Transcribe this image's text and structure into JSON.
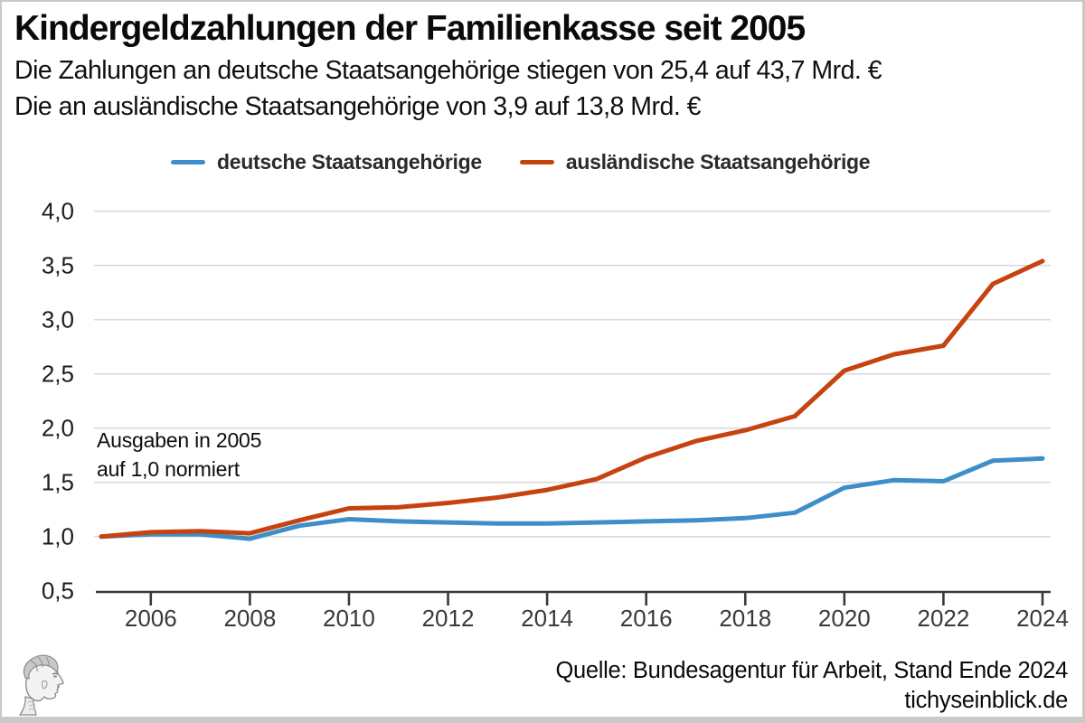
{
  "header": {
    "title": "Kindergeldzahlungen der Familienkasse seit 2005",
    "subtitle1": "Die Zahlungen an deutsche Staatsangehörige stiegen von 25,4 auf 43,7 Mrd. €",
    "subtitle2": "Die an ausländische Staatsangehörige von 3,9 auf 13,8 Mrd. €"
  },
  "legend": [
    {
      "label": "deutsche Staatsangehörige",
      "color": "#3e8ec9"
    },
    {
      "label": "ausländische Staatsangehörige",
      "color": "#c64310"
    }
  ],
  "annotation": {
    "line1": "Ausgaben in 2005",
    "line2": "auf 1,0 normiert"
  },
  "footer": {
    "source": "Quelle: Bundesagentur für Arbeit, Stand Ende 2024",
    "site": "tichyseinblick.de"
  },
  "logo": {
    "name": "tichys-einblick-head-logo"
  },
  "chart_data": {
    "type": "line",
    "title": "Kindergeldzahlungen der Familienkasse seit 2005",
    "annotation": "Ausgaben in 2005 auf 1,0 normiert",
    "x": [
      2005,
      2006,
      2007,
      2008,
      2009,
      2010,
      2011,
      2012,
      2013,
      2014,
      2015,
      2016,
      2017,
      2018,
      2019,
      2020,
      2021,
      2022,
      2023,
      2024
    ],
    "series": [
      {
        "name": "deutsche Staatsangehörige",
        "color": "#3e8ec9",
        "values": [
          1.0,
          1.02,
          1.02,
          0.98,
          1.1,
          1.16,
          1.14,
          1.13,
          1.12,
          1.12,
          1.13,
          1.14,
          1.15,
          1.17,
          1.22,
          1.45,
          1.52,
          1.51,
          1.7,
          1.72
        ]
      },
      {
        "name": "ausländische Staatsangehörige",
        "color": "#c64310",
        "values": [
          1.0,
          1.04,
          1.05,
          1.03,
          1.15,
          1.26,
          1.27,
          1.31,
          1.36,
          1.43,
          1.53,
          1.73,
          1.88,
          1.98,
          2.11,
          2.53,
          2.68,
          2.76,
          3.33,
          3.54
        ]
      }
    ],
    "xlim": [
      2005,
      2024
    ],
    "ylim": [
      0.5,
      4.0
    ],
    "yticks": [
      0.5,
      1.0,
      1.5,
      2.0,
      2.5,
      3.0,
      3.5,
      4.0
    ],
    "ytick_labels": [
      "0,5",
      "1,0",
      "1,5",
      "2,0",
      "2,5",
      "3,0",
      "3,5",
      "4,0"
    ],
    "xticks": [
      2006,
      2008,
      2010,
      2012,
      2014,
      2016,
      2018,
      2020,
      2022,
      2024
    ],
    "grid": "horizontal",
    "grid_color": "#d8d8d8",
    "axis_color": "#3a3a3a",
    "legend_position": "top"
  }
}
